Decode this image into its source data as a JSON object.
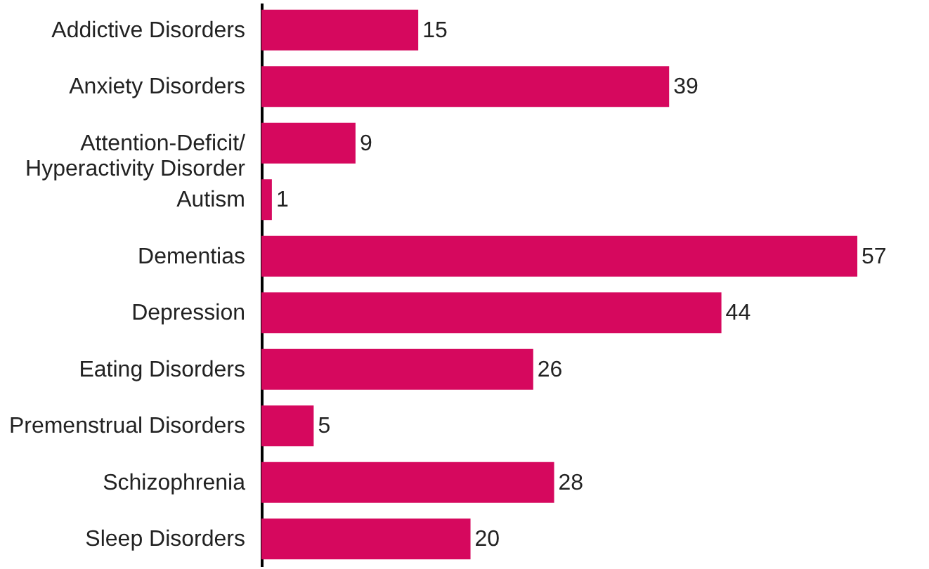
{
  "chart_data": {
    "type": "bar",
    "orientation": "horizontal",
    "categories": [
      "Addictive Disorders",
      "Anxiety Disorders",
      "Attention-Deficit/\nHyperactivity Disorder",
      "Autism",
      "Dementias",
      "Depression",
      "Eating Disorders",
      "Premenstrual Disorders",
      "Schizophrenia",
      "Sleep Disorders"
    ],
    "values": [
      15,
      39,
      9,
      1,
      57,
      44,
      26,
      5,
      28,
      20
    ],
    "color": "#d6085e",
    "data_labels": true,
    "tick_labels": "y"
  }
}
